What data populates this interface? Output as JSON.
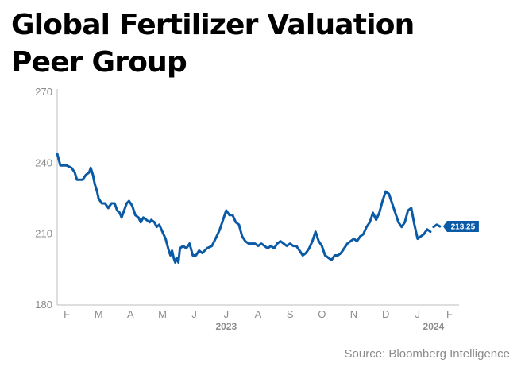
{
  "title": "Global Fertilizer Valuation Peer Group",
  "source": "Source: Bloomberg Intelligence",
  "colors": {
    "line": "#0b5aa6",
    "axis": "#bdbdbd",
    "text": "#8c8c8c",
    "label_bg": "#0b5aa6"
  },
  "chart_data": {
    "type": "line",
    "title": "Global Fertilizer Valuation Peer Group",
    "xlabel": "",
    "ylabel": "",
    "ylim": [
      180,
      270
    ],
    "y_ticks": [
      180,
      210,
      240,
      270
    ],
    "xlim": [
      0,
      12.6
    ],
    "x_ticks": [
      {
        "label": "F",
        "x": 0.3
      },
      {
        "label": "M",
        "x": 1.3
      },
      {
        "label": "A",
        "x": 2.3
      },
      {
        "label": "M",
        "x": 3.3
      },
      {
        "label": "J",
        "x": 4.3
      },
      {
        "label": "J",
        "x": 5.3
      },
      {
        "label": "A",
        "x": 6.3
      },
      {
        "label": "S",
        "x": 7.3
      },
      {
        "label": "O",
        "x": 8.3
      },
      {
        "label": "N",
        "x": 9.3
      },
      {
        "label": "D",
        "x": 10.3
      },
      {
        "label": "J",
        "x": 11.3
      },
      {
        "label": "F",
        "x": 12.3
      }
    ],
    "year_labels": [
      {
        "label": "2023",
        "x": 5.3
      },
      {
        "label": "2024",
        "x": 11.8
      }
    ],
    "grid": false,
    "last_value_label": "213.25",
    "series": [
      {
        "name": "",
        "points": [
          [
            0.0,
            244
          ],
          [
            0.1,
            239
          ],
          [
            0.3,
            239
          ],
          [
            0.45,
            238
          ],
          [
            0.55,
            236
          ],
          [
            0.62,
            233
          ],
          [
            0.7,
            233
          ],
          [
            0.8,
            233
          ],
          [
            0.9,
            235
          ],
          [
            1.0,
            236
          ],
          [
            1.05,
            238
          ],
          [
            1.12,
            235
          ],
          [
            1.18,
            231
          ],
          [
            1.25,
            228
          ],
          [
            1.3,
            225
          ],
          [
            1.4,
            223
          ],
          [
            1.5,
            223
          ],
          [
            1.6,
            221
          ],
          [
            1.7,
            223
          ],
          [
            1.8,
            223
          ],
          [
            1.88,
            220
          ],
          [
            1.96,
            219
          ],
          [
            2.02,
            217
          ],
          [
            2.1,
            220
          ],
          [
            2.18,
            223
          ],
          [
            2.25,
            224
          ],
          [
            2.35,
            222
          ],
          [
            2.45,
            218
          ],
          [
            2.55,
            217
          ],
          [
            2.62,
            215
          ],
          [
            2.7,
            217
          ],
          [
            2.8,
            216
          ],
          [
            2.9,
            215
          ],
          [
            2.95,
            216
          ],
          [
            3.05,
            215
          ],
          [
            3.12,
            213
          ],
          [
            3.2,
            214
          ],
          [
            3.3,
            211
          ],
          [
            3.4,
            208
          ],
          [
            3.5,
            203
          ],
          [
            3.55,
            201
          ],
          [
            3.6,
            203
          ],
          [
            3.65,
            200
          ],
          [
            3.7,
            198
          ],
          [
            3.75,
            200
          ],
          [
            3.8,
            198
          ],
          [
            3.85,
            204
          ],
          [
            3.95,
            205
          ],
          [
            4.05,
            204
          ],
          [
            4.15,
            206
          ],
          [
            4.25,
            201
          ],
          [
            4.35,
            201
          ],
          [
            4.45,
            203
          ],
          [
            4.55,
            202
          ],
          [
            4.7,
            204
          ],
          [
            4.85,
            205
          ],
          [
            5.0,
            209
          ],
          [
            5.1,
            212
          ],
          [
            5.2,
            216
          ],
          [
            5.3,
            220
          ],
          [
            5.4,
            218
          ],
          [
            5.5,
            218
          ],
          [
            5.6,
            215
          ],
          [
            5.7,
            214
          ],
          [
            5.8,
            209
          ],
          [
            5.9,
            207
          ],
          [
            6.0,
            206
          ],
          [
            6.1,
            206
          ],
          [
            6.2,
            206
          ],
          [
            6.3,
            205
          ],
          [
            6.4,
            206
          ],
          [
            6.5,
            205
          ],
          [
            6.6,
            204
          ],
          [
            6.7,
            205
          ],
          [
            6.8,
            204
          ],
          [
            6.9,
            206
          ],
          [
            7.0,
            207
          ],
          [
            7.1,
            206
          ],
          [
            7.2,
            205
          ],
          [
            7.3,
            206
          ],
          [
            7.4,
            205
          ],
          [
            7.5,
            205
          ],
          [
            7.6,
            203
          ],
          [
            7.7,
            201
          ],
          [
            7.8,
            202
          ],
          [
            7.9,
            204
          ],
          [
            8.0,
            207
          ],
          [
            8.1,
            211
          ],
          [
            8.2,
            207
          ],
          [
            8.3,
            205
          ],
          [
            8.4,
            201
          ],
          [
            8.5,
            200
          ],
          [
            8.6,
            199
          ],
          [
            8.7,
            201
          ],
          [
            8.8,
            201
          ],
          [
            8.9,
            202
          ],
          [
            9.0,
            204
          ],
          [
            9.1,
            206
          ],
          [
            9.2,
            207
          ],
          [
            9.3,
            208
          ],
          [
            9.4,
            207
          ],
          [
            9.5,
            209
          ],
          [
            9.6,
            210
          ],
          [
            9.7,
            213
          ],
          [
            9.8,
            215
          ],
          [
            9.9,
            219
          ],
          [
            10.0,
            216
          ],
          [
            10.1,
            219
          ],
          [
            10.2,
            224
          ],
          [
            10.3,
            228
          ],
          [
            10.4,
            227
          ],
          [
            10.5,
            223
          ],
          [
            10.6,
            219
          ],
          [
            10.7,
            215
          ],
          [
            10.8,
            213
          ],
          [
            10.9,
            215
          ],
          [
            11.0,
            220
          ],
          [
            11.1,
            221
          ],
          [
            11.2,
            214
          ],
          [
            11.3,
            208
          ],
          [
            11.4,
            209
          ],
          [
            11.5,
            210
          ],
          [
            11.6,
            212
          ],
          [
            11.7,
            211
          ]
        ],
        "points_tail": [
          [
            11.8,
            213
          ],
          [
            11.9,
            214
          ],
          [
            12.0,
            213.25
          ]
        ]
      }
    ]
  }
}
